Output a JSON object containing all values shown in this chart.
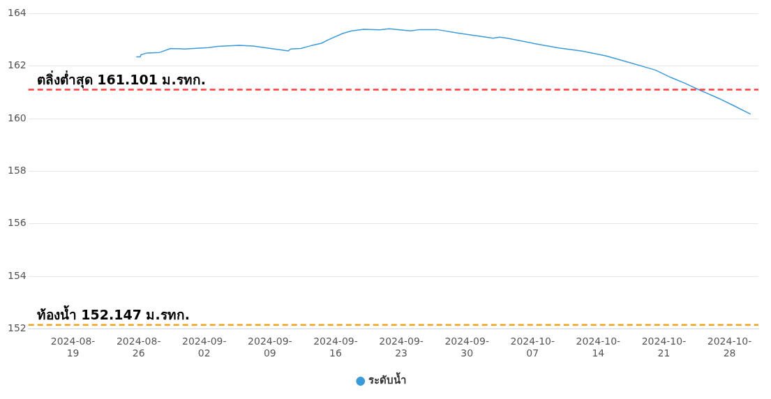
{
  "chart_data": {
    "type": "line",
    "x": [
      "2024-08-25T18:00",
      "2024-08-26T04:00",
      "2024-08-26T06:00",
      "2024-08-26T22:00",
      "2024-08-28T06:00",
      "2024-08-29T10:00",
      "2024-08-30T22:00",
      "2024-09-02T11:00",
      "2024-09-03T10:00",
      "2024-09-05T17:00",
      "2024-09-07T05:00",
      "2024-09-10T23:00",
      "2024-09-11T05:00",
      "2024-09-12T07:00",
      "2024-09-13T10:00",
      "2024-09-14T12:00",
      "2024-09-15T05:00",
      "2024-09-16T18:00",
      "2024-09-17T17:00",
      "2024-09-19T00:00",
      "2024-09-20T17:00",
      "2024-09-21T17:00",
      "2024-09-24T00:00",
      "2024-09-25T00:00",
      "2024-09-26T19:00",
      "2024-09-29T05:00",
      "2024-10-02T19:00",
      "2024-10-03T12:00",
      "2024-10-04T07:00",
      "2024-10-07T07:00",
      "2024-10-09T19:00",
      "2024-10-12T07:00",
      "2024-10-14T19:00",
      "2024-10-17T07:00",
      "2024-10-20T02:00",
      "2024-10-21T19:00",
      "2024-10-23T07:00",
      "2024-10-24T19:00",
      "2024-10-26T22:00",
      "2024-10-28T10:00",
      "2024-10-30T06:00"
    ],
    "series": [
      {
        "name": "ระดับน้ำ",
        "color": "#3a9ad9",
        "values": [
          162.35,
          162.35,
          162.43,
          162.5,
          162.52,
          162.67,
          162.65,
          162.7,
          162.75,
          162.79,
          162.76,
          162.58,
          162.65,
          162.67,
          162.78,
          162.87,
          163.0,
          163.24,
          163.34,
          163.4,
          163.38,
          163.42,
          163.34,
          163.39,
          163.39,
          163.25,
          163.06,
          163.1,
          163.06,
          162.85,
          162.69,
          162.57,
          162.39,
          162.14,
          161.85,
          161.56,
          161.34,
          161.09,
          160.76,
          160.5,
          160.17
        ]
      }
    ],
    "xlim": [
      "2024-08-14T06:00",
      "2024-10-31T02:00"
    ],
    "xticks": [
      "2024-08-19",
      "2024-08-26",
      "2024-09-02",
      "2024-09-09",
      "2024-09-16",
      "2024-09-23",
      "2024-09-30",
      "2024-10-07",
      "2024-10-14",
      "2024-10-21",
      "2024-10-28"
    ],
    "ylim": [
      152,
      164
    ],
    "yticks": [
      152,
      154,
      156,
      158,
      160,
      162,
      164
    ],
    "ref_lines": [
      {
        "axis": "y",
        "value": 161.101,
        "label": "ตลิ่งต่ำสุด 161.101 ม.รทก.",
        "color": "#ff3b3b",
        "line_style": "dashed"
      },
      {
        "axis": "y",
        "value": 152.147,
        "label": "ท้องน้ำ 152.147 ม.รทก.",
        "color": "#f5a21b",
        "line_style": "dashed"
      }
    ],
    "grid": "y",
    "legend": "bottom",
    "line_style": "solid"
  }
}
